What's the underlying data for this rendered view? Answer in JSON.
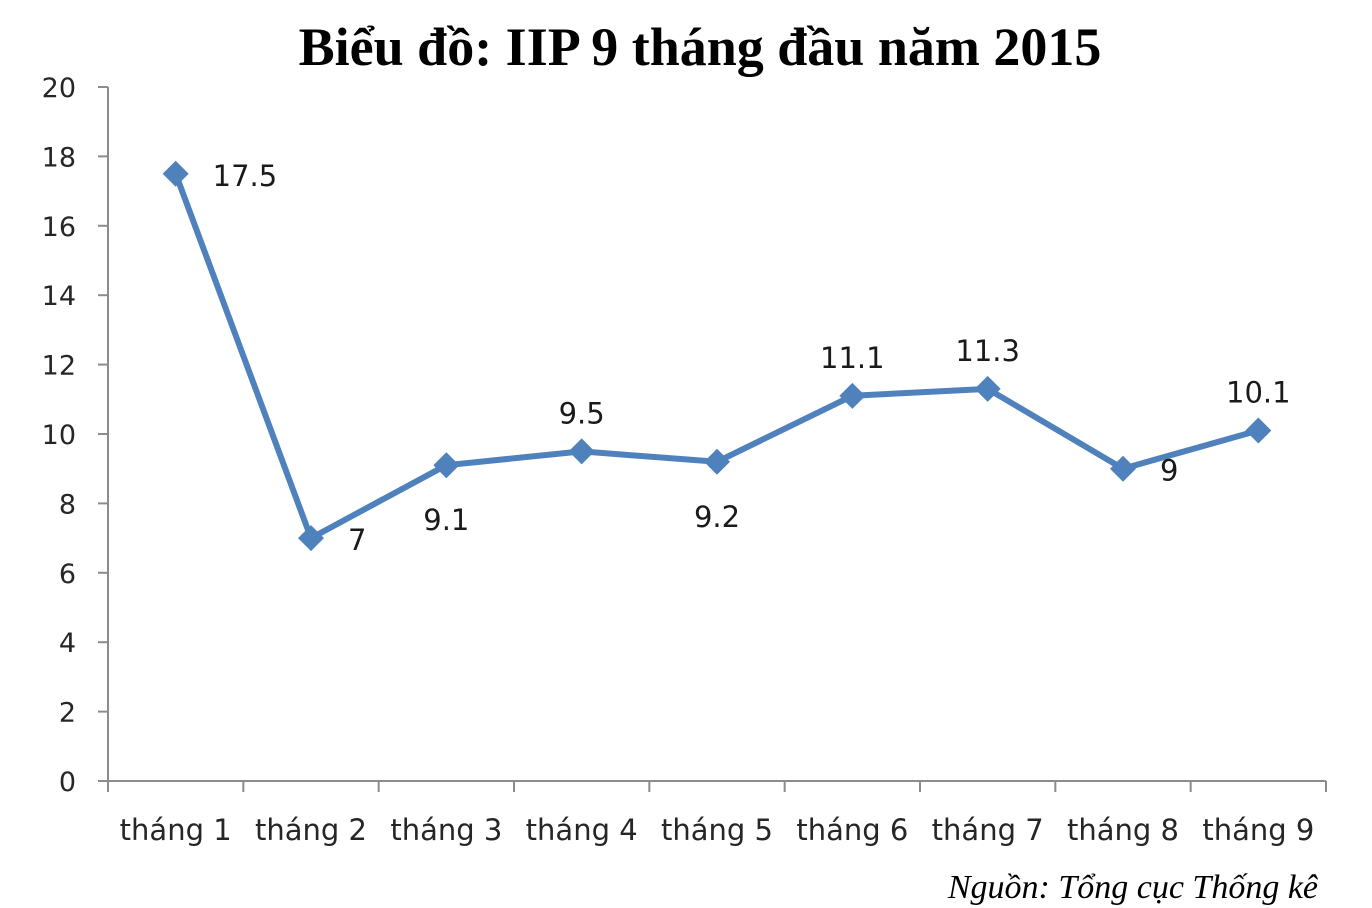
{
  "chart_data": {
    "type": "line",
    "title": "Biểu đồ: IIP 9 tháng đầu năm 2015",
    "source": "Nguồn: Tổng cục Thống kê",
    "categories": [
      "tháng 1",
      "tháng 2",
      "tháng 3",
      "tháng 4",
      "tháng 5",
      "tháng 6",
      "tháng 7",
      "tháng 8",
      "tháng 9"
    ],
    "series": [
      {
        "values": [
          17.5,
          7,
          9.1,
          9.5,
          9.2,
          11.1,
          11.3,
          9,
          10.1
        ],
        "data_labels": [
          "17.5",
          "7",
          "9.1",
          "9.5",
          "9.2",
          "11.1",
          "11.3",
          "9",
          "10.1"
        ],
        "color": "#4f81bd",
        "marker": "diamond"
      }
    ],
    "yticks": [
      "0",
      "2",
      "4",
      "6",
      "8",
      "10",
      "12",
      "14",
      "16",
      "18",
      "20"
    ],
    "ylim": [
      0,
      20
    ],
    "xlabel": "",
    "ylabel": "",
    "grid": false,
    "legend": "none"
  }
}
